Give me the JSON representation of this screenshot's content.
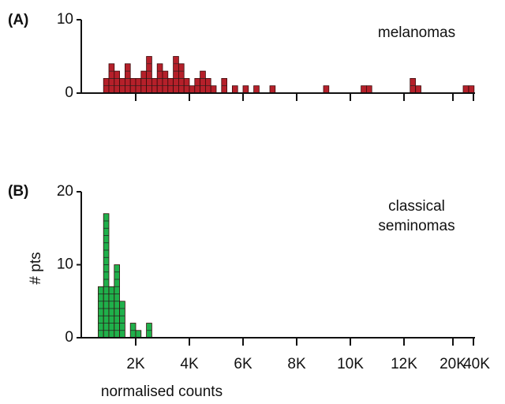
{
  "chart_data": [
    {
      "type": "histogram",
      "panel_label": "(A)",
      "annotation": [
        "melanomas"
      ],
      "x": [
        800,
        1000,
        1200,
        1400,
        1600,
        1800,
        2000,
        2200,
        2400,
        2600,
        2800,
        3000,
        3200,
        3400,
        3600,
        3800,
        4000,
        4200,
        4400,
        4600,
        4800,
        5200,
        5600,
        6000,
        6400,
        7000,
        9000,
        10400,
        10600,
        13000,
        13900,
        30000,
        35400
      ],
      "values": [
        2,
        4,
        3,
        2,
        4,
        2,
        2,
        3,
        5,
        2,
        4,
        3,
        2,
        5,
        4,
        2,
        1,
        2,
        3,
        2,
        1,
        2,
        1,
        1,
        1,
        1,
        1,
        1,
        1,
        2,
        1,
        1,
        1
      ],
      "color": "#b5202a",
      "ylim": [
        0,
        10
      ],
      "yticks": [
        0,
        10
      ],
      "xlim": [
        0,
        40000
      ]
    },
    {
      "type": "histogram",
      "panel_label": "(B)",
      "annotation": [
        "classical",
        "seminomas"
      ],
      "ylabel": "# pts",
      "xlabel": "normalised counts",
      "x": [
        600,
        800,
        1000,
        1200,
        1400,
        1800,
        2000,
        2400
      ],
      "values": [
        7,
        17,
        7,
        10,
        5,
        2,
        1,
        2
      ],
      "color": "#1fb04b",
      "ylim": [
        0,
        20
      ],
      "yticks": [
        0,
        10,
        20
      ],
      "xlim": [
        0,
        40000
      ],
      "xticks": [
        {
          "value": 2000,
          "label": "2K"
        },
        {
          "value": 4000,
          "label": "4K"
        },
        {
          "value": 6000,
          "label": "6K"
        },
        {
          "value": 8000,
          "label": "8K"
        },
        {
          "value": 10000,
          "label": "10K"
        },
        {
          "value": 12000,
          "label": "12K"
        },
        {
          "value": 20000,
          "label": "20K"
        },
        {
          "value": 40000,
          "label": "40K"
        }
      ]
    }
  ]
}
